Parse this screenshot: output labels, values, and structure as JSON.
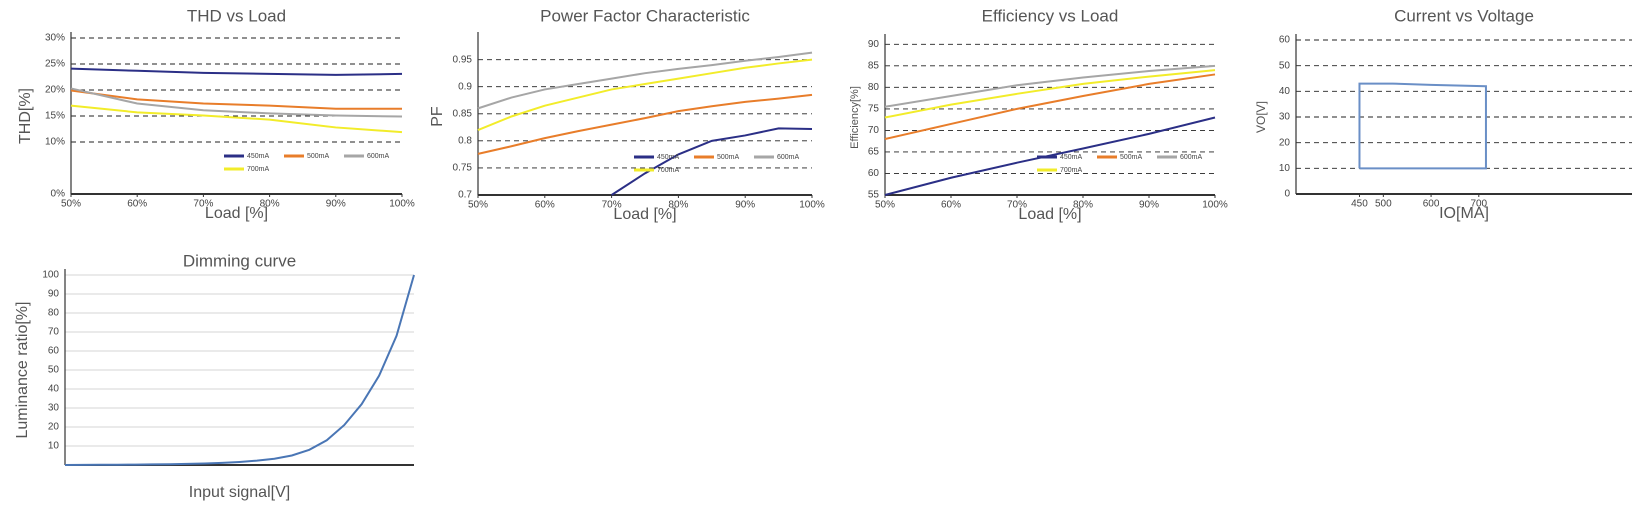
{
  "chart_data": [
    {
      "type": "line",
      "title": "THD vs Load",
      "xlabel": "Load [%]",
      "ylabel": "THD[%]",
      "grid": "dashed",
      "legend": "lower right",
      "x": [
        50,
        60,
        70,
        80,
        90,
        100
      ],
      "xlim": [
        50,
        100
      ],
      "ylim": [
        0,
        30
      ],
      "xticks": [
        {
          "value": 50,
          "label": "50%"
        },
        {
          "value": 60,
          "label": "60%"
        },
        {
          "value": 70,
          "label": "70%"
        },
        {
          "value": 80,
          "label": "80%"
        },
        {
          "value": 90,
          "label": "90%"
        },
        {
          "value": 100,
          "label": "100%"
        }
      ],
      "yticks": [
        {
          "value": 0,
          "label": "0%"
        },
        {
          "value": 10,
          "label": "10%"
        },
        {
          "value": 15,
          "label": "15%"
        },
        {
          "value": 20,
          "label": "20%"
        },
        {
          "value": 25,
          "label": "25%"
        },
        {
          "value": 30,
          "label": "30%"
        }
      ],
      "series": [
        {
          "name": "450mA",
          "color": "#2b2f86",
          "values": [
            24.1,
            23.7,
            23.3,
            23.1,
            22.9,
            23.1
          ]
        },
        {
          "name": "500mA",
          "color": "#e87d2a",
          "values": [
            19.9,
            18.2,
            17.4,
            17.0,
            16.4,
            16.4
          ]
        },
        {
          "name": "600mA",
          "color": "#a6a6a6",
          "values": [
            20.3,
            17.4,
            16.1,
            15.5,
            15.1,
            14.9
          ]
        },
        {
          "name": "700mA",
          "color": "#f2ec2a",
          "values": [
            17.0,
            15.7,
            15.1,
            14.3,
            12.8,
            11.9
          ]
        }
      ]
    },
    {
      "type": "line",
      "title": "Power Factor Characteristic",
      "xlabel": "Load [%]",
      "ylabel": "PF",
      "grid": "dashed",
      "legend": "lower right",
      "x": [
        50,
        55,
        60,
        65,
        70,
        75,
        80,
        85,
        90,
        95,
        100
      ],
      "xlim": [
        50,
        100
      ],
      "ylim": [
        0.7,
        0.99
      ],
      "xticks": [
        {
          "value": 50,
          "label": "50%"
        },
        {
          "value": 60,
          "label": "60%"
        },
        {
          "value": 70,
          "label": "70%"
        },
        {
          "value": 80,
          "label": "80%"
        },
        {
          "value": 90,
          "label": "90%"
        },
        {
          "value": 100,
          "label": "100%"
        }
      ],
      "yticks": [
        0.7,
        0.75,
        0.8,
        0.85,
        0.9,
        0.95
      ],
      "series": [
        {
          "name": "450mA",
          "color": "#2b2f86",
          "values": [
            null,
            null,
            null,
            null,
            0.7,
            0.74,
            0.775,
            0.8,
            0.81,
            0.823,
            0.822
          ]
        },
        {
          "name": "500mA",
          "color": "#e87d2a",
          "values": [
            0.776,
            0.79,
            0.805,
            0.818,
            0.83,
            0.842,
            0.855,
            0.864,
            0.872,
            0.878,
            0.885
          ]
        },
        {
          "name": "600mA",
          "color": "#a6a6a6",
          "values": [
            0.86,
            0.88,
            0.895,
            0.905,
            0.915,
            0.925,
            0.933,
            0.94,
            0.948,
            0.955,
            0.963
          ]
        },
        {
          "name": "700mA",
          "color": "#f2ec2a",
          "values": [
            0.82,
            0.845,
            0.865,
            0.88,
            0.895,
            0.905,
            0.915,
            0.925,
            0.935,
            0.943,
            0.95
          ]
        }
      ]
    },
    {
      "type": "line",
      "title": "Efficiency vs Load",
      "xlabel": "Load [%]",
      "ylabel": "Efficiency[%]",
      "grid": "dashed",
      "legend": "lower right",
      "x": [
        50,
        60,
        70,
        80,
        90,
        100
      ],
      "xlim": [
        50,
        100
      ],
      "ylim": [
        55,
        91
      ],
      "xticks": [
        {
          "value": 50,
          "label": "50%"
        },
        {
          "value": 60,
          "label": "60%"
        },
        {
          "value": 70,
          "label": "70%"
        },
        {
          "value": 80,
          "label": "80%"
        },
        {
          "value": 90,
          "label": "90%"
        },
        {
          "value": 100,
          "label": "100%"
        }
      ],
      "yticks": [
        55,
        60,
        65,
        70,
        75,
        80,
        85,
        90
      ],
      "series": [
        {
          "name": "450mA",
          "color": "#2b2f86",
          "values": [
            55,
            59,
            62.5,
            65.8,
            69.2,
            73
          ]
        },
        {
          "name": "500mA",
          "color": "#e87d2a",
          "values": [
            68,
            71.5,
            75,
            78,
            80.8,
            83
          ]
        },
        {
          "name": "600mA",
          "color": "#a6a6a6",
          "values": [
            75.5,
            78,
            80.5,
            82.3,
            83.8,
            85
          ]
        },
        {
          "name": "700mA",
          "color": "#f2ec2a",
          "values": [
            73,
            76,
            78.5,
            80.8,
            82.5,
            84
          ]
        }
      ]
    },
    {
      "type": "line",
      "title": "Current vs Voltage",
      "xlabel": "IO[MA]",
      "ylabel": "VO[V]",
      "grid": "dashed",
      "xlim": [
        317,
        1021
      ],
      "ylim": [
        0,
        60
      ],
      "xticks": [
        450,
        500,
        600,
        700
      ],
      "yticks": [
        0,
        10,
        20,
        30,
        40,
        50,
        60
      ],
      "series": [
        {
          "color": "#6a8fc6",
          "x": [
            450,
            450,
            520,
            600,
            715,
            715,
            450
          ],
          "values": [
            10,
            43,
            43,
            42.5,
            42,
            10,
            10
          ]
        }
      ]
    },
    {
      "type": "line",
      "title": "Dimming curve",
      "xlabel": "Input signal[V]",
      "ylabel": "Luminance ratio[%]",
      "grid": "solid",
      "x": [
        0,
        5,
        10,
        15,
        20,
        25,
        30,
        35,
        40,
        45,
        50,
        55,
        60,
        65,
        70,
        75,
        80,
        85,
        90,
        95,
        100
      ],
      "xlim": [
        0,
        100
      ],
      "ylim": [
        0,
        100
      ],
      "yticks": [
        10,
        20,
        30,
        40,
        50,
        60,
        70,
        80,
        90,
        100
      ],
      "series": [
        {
          "color": "#4a76b5",
          "values": [
            0,
            0.05,
            0.1,
            0.15,
            0.2,
            0.3,
            0.4,
            0.6,
            0.8,
            1.1,
            1.6,
            2.3,
            3.3,
            5,
            8,
            13,
            21,
            32,
            47,
            68,
            100
          ]
        }
      ]
    }
  ]
}
